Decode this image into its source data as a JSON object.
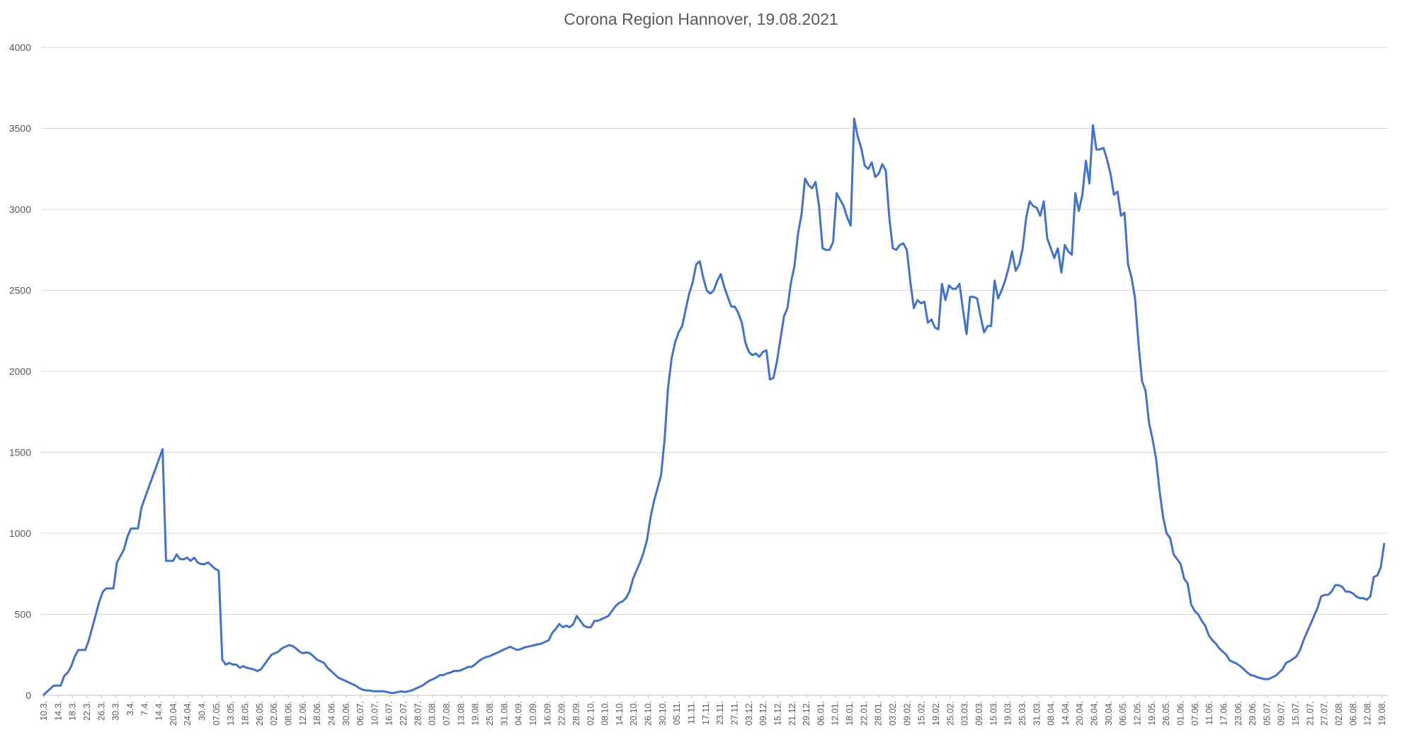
{
  "chart_data": {
    "type": "line",
    "title": "Corona Region Hannover, 19.08.2021",
    "xlabel": "",
    "ylabel": "",
    "ylim": [
      0,
      4000
    ],
    "yticks": [
      0,
      500,
      1000,
      1500,
      2000,
      2500,
      3000,
      3500,
      4000
    ],
    "grid": true,
    "legend": "none",
    "line_color": "#4472c4",
    "x_tick_labels": [
      "10.3.",
      "14.3.",
      "18.3.",
      "22.3.",
      "26.3.",
      "30.3.",
      "3.4.",
      "7.4.",
      "14.4.",
      "20.04.",
      "24.04.",
      "30.4.",
      "07.05.",
      "13.05.",
      "18.05.",
      "26.05.",
      "02.06.",
      "08.06.",
      "12.06.",
      "18.06.",
      "24.06.",
      "30.06.",
      "06.07.",
      "10.07.",
      "16.07.",
      "22.07.",
      "28.07.",
      "03.08.",
      "07.08.",
      "13.08.",
      "19.08.",
      "25.08.",
      "31.08.",
      "04.09.",
      "10.09.",
      "16.09.",
      "22.09.",
      "28.09.",
      "02.10.",
      "08.10.",
      "14.10.",
      "20.10.",
      "26.10.",
      "30.10.",
      "05.11.",
      "11.11.",
      "17.11.",
      "23.11.",
      "27.11.",
      "03.12.",
      "09.12.",
      "15.12.",
      "21.12.",
      "29.12.",
      "06.01.",
      "12.01.",
      "18.01.",
      "22.01.",
      "28.01.",
      "03.02.",
      "09.02.",
      "15.02.",
      "19.02.",
      "25.02.",
      "03.03.",
      "09.03.",
      "15.03.",
      "19.03.",
      "25.03.",
      "31.03.",
      "08.04.",
      "14.04.",
      "20.04.",
      "26.04.",
      "30.04.",
      "06.05.",
      "12.05.",
      "19.05.",
      "26.05.",
      "01.06.",
      "07.06.",
      "11.06.",
      "17.06.",
      "23.06.",
      "29.06.",
      "05.07.",
      "09.07.",
      "15.07.",
      "21.07.",
      "27.07.",
      "02.08.",
      "06.08.",
      "12.08.",
      "19.08."
    ],
    "series": [
      {
        "values": [
          0,
          20,
          40,
          60,
          60,
          60,
          120,
          140,
          180,
          240,
          280,
          280,
          280,
          340,
          420,
          500,
          580,
          640,
          660,
          660,
          660,
          820,
          860,
          900,
          980,
          1030,
          1030,
          1030,
          1160,
          1220,
          1280,
          1340,
          1400,
          1460,
          1520,
          830,
          830,
          830,
          870,
          840,
          840,
          850,
          830,
          850,
          820,
          810,
          810,
          820,
          800,
          780,
          770,
          220,
          190,
          200,
          190,
          190,
          170,
          180,
          170,
          165,
          160,
          150,
          160,
          190,
          220,
          250,
          260,
          270,
          290,
          300,
          310,
          305,
          290,
          270,
          260,
          265,
          260,
          240,
          220,
          210,
          200,
          170,
          150,
          130,
          110,
          100,
          90,
          80,
          70,
          60,
          45,
          35,
          30,
          30,
          25,
          25,
          25,
          25,
          20,
          15,
          15,
          20,
          25,
          20,
          25,
          30,
          40,
          50,
          60,
          75,
          90,
          100,
          110,
          125,
          125,
          135,
          140,
          150,
          150,
          155,
          165,
          175,
          175,
          190,
          210,
          225,
          235,
          240,
          250,
          260,
          270,
          280,
          290,
          300,
          290,
          280,
          285,
          295,
          300,
          305,
          310,
          315,
          320,
          330,
          340,
          385,
          410,
          440,
          420,
          430,
          420,
          440,
          490,
          460,
          430,
          420,
          420,
          460,
          460,
          470,
          480,
          490,
          520,
          550,
          570,
          580,
          600,
          640,
          720,
          770,
          820,
          880,
          960,
          1100,
          1200,
          1280,
          1360,
          1580,
          1900,
          2080,
          2180,
          2240,
          2280,
          2380,
          2480,
          2550,
          2660,
          2680,
          2580,
          2500,
          2480,
          2500,
          2560,
          2600,
          2520,
          2460,
          2400,
          2400,
          2360,
          2300,
          2180,
          2120,
          2100,
          2110,
          2090,
          2120,
          2130,
          1950,
          1960,
          2060,
          2200,
          2340,
          2390,
          2550,
          2650,
          2850,
          2970,
          3190,
          3150,
          3130,
          3170,
          3020,
          2760,
          2750,
          2750,
          2800,
          3100,
          3060,
          3020,
          2950,
          2900,
          3560,
          3450,
          3380,
          3270,
          3250,
          3290,
          3200,
          3220,
          3280,
          3240,
          2950,
          2760,
          2750,
          2780,
          2790,
          2750,
          2550,
          2390,
          2440,
          2420,
          2430,
          2300,
          2320,
          2270,
          2260,
          2540,
          2440,
          2530,
          2510,
          2510,
          2540,
          2380,
          2230,
          2460,
          2460,
          2450,
          2340,
          2240,
          2280,
          2280,
          2560,
          2450,
          2500,
          2560,
          2640,
          2740,
          2620,
          2660,
          2760,
          2950,
          3050,
          3020,
          3010,
          2960,
          3050,
          2820,
          2760,
          2700,
          2760,
          2610,
          2780,
          2740,
          2720,
          3100,
          2990,
          3090,
          3300,
          3160,
          3520,
          3370,
          3370,
          3380,
          3310,
          3220,
          3090,
          3110,
          2960,
          2980,
          2660,
          2580,
          2450,
          2170,
          1940,
          1880,
          1680,
          1580,
          1460,
          1260,
          1100,
          1000,
          970,
          870,
          840,
          810,
          720,
          690,
          560,
          520,
          500,
          460,
          430,
          370,
          340,
          320,
          290,
          270,
          250,
          215,
          205,
          195,
          180,
          160,
          140,
          125,
          120,
          110,
          105,
          100,
          100,
          110,
          120,
          140,
          160,
          200,
          210,
          225,
          240,
          280,
          340,
          390,
          440,
          490,
          540,
          610,
          620,
          620,
          640,
          680,
          680,
          670,
          640,
          640,
          630,
          610,
          600,
          600,
          590,
          610,
          730,
          740,
          790,
          940
        ]
      }
    ]
  }
}
